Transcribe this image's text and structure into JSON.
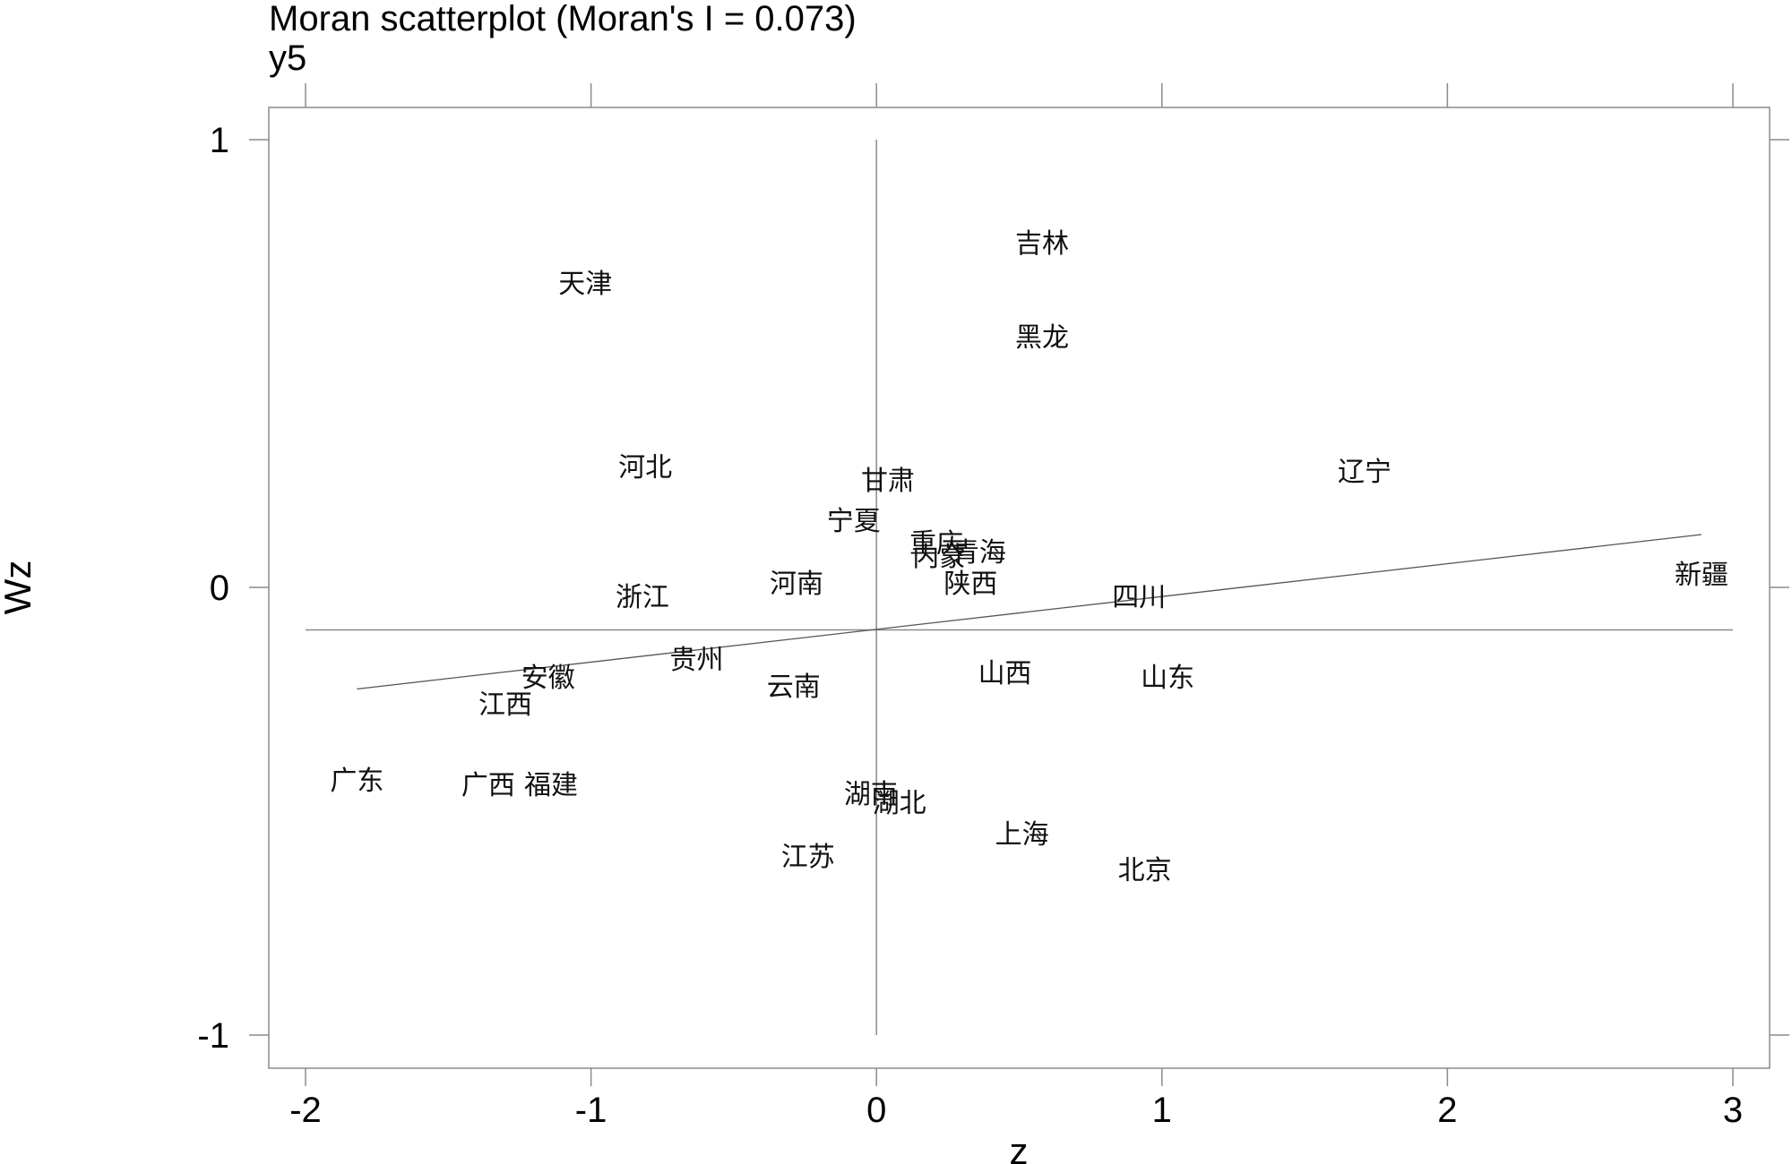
{
  "chart_data": {
    "type": "scatter",
    "title": "Moran scatterplot (Moran's I = 0.073)",
    "subtitle": "y5",
    "xlabel": "z",
    "ylabel": "Wz",
    "xlim": [
      -2.1,
      3.1
    ],
    "ylim": [
      -1.08,
      1.08
    ],
    "xticks": [
      -2,
      -1,
      0,
      1,
      2,
      3
    ],
    "yticks": [
      -1,
      0,
      1
    ],
    "x_tick_labels": [
      "-2",
      "-1",
      "0",
      "1",
      "2",
      "3"
    ],
    "y_tick_labels": [
      "-1",
      "0",
      "1"
    ],
    "reference_lines": {
      "x": 0,
      "y": -0.095
    },
    "fit_line": {
      "x": [
        -1.82,
        2.89
      ],
      "y": [
        -0.227,
        0.118
      ]
    },
    "points": [
      {
        "label": "吉林",
        "x": 0.58,
        "y": 0.77
      },
      {
        "label": "天津",
        "x": -1.02,
        "y": 0.68
      },
      {
        "label": "黑龙",
        "x": 0.58,
        "y": 0.56
      },
      {
        "label": "河北",
        "x": -0.81,
        "y": 0.27
      },
      {
        "label": "辽宁",
        "x": 1.71,
        "y": 0.26
      },
      {
        "label": "甘肃",
        "x": 0.04,
        "y": 0.24
      },
      {
        "label": "宁夏",
        "x": -0.08,
        "y": 0.15
      },
      {
        "label": "重庆",
        "x": 0.21,
        "y": 0.1
      },
      {
        "label": "内蒙",
        "x": 0.22,
        "y": 0.07
      },
      {
        "label": "青海",
        "x": 0.36,
        "y": 0.08
      },
      {
        "label": "新疆",
        "x": 2.89,
        "y": 0.03
      },
      {
        "label": "陕西",
        "x": 0.33,
        "y": 0.01
      },
      {
        "label": "河南",
        "x": -0.28,
        "y": 0.01
      },
      {
        "label": "浙江",
        "x": -0.82,
        "y": -0.02
      },
      {
        "label": "四川",
        "x": 0.92,
        "y": -0.02
      },
      {
        "label": "贵州",
        "x": -0.63,
        "y": -0.16
      },
      {
        "label": "山西",
        "x": 0.45,
        "y": -0.19
      },
      {
        "label": "安徽",
        "x": -1.15,
        "y": -0.2
      },
      {
        "label": "山东",
        "x": 1.02,
        "y": -0.2
      },
      {
        "label": "云南",
        "x": -0.29,
        "y": -0.22
      },
      {
        "label": "江西",
        "x": -1.3,
        "y": -0.26
      },
      {
        "label": "广东",
        "x": -1.82,
        "y": -0.43
      },
      {
        "label": "广西",
        "x": -1.36,
        "y": -0.44
      },
      {
        "label": "福建",
        "x": -1.14,
        "y": -0.44
      },
      {
        "label": "湖南",
        "x": -0.02,
        "y": -0.46
      },
      {
        "label": "湖北",
        "x": 0.08,
        "y": -0.48
      },
      {
        "label": "上海",
        "x": 0.51,
        "y": -0.55
      },
      {
        "label": "江苏",
        "x": -0.24,
        "y": -0.6
      },
      {
        "label": "北京",
        "x": 0.94,
        "y": -0.63
      }
    ]
  }
}
